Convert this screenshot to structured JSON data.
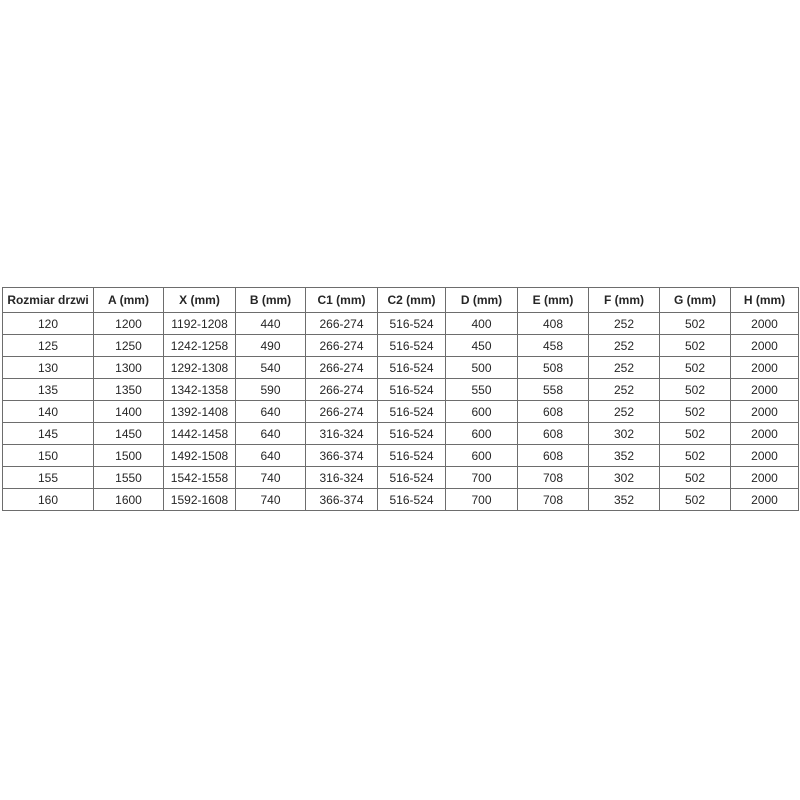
{
  "page": {
    "background_color": "#ffffff",
    "border_color": "#6d6d6d",
    "text_color": "#262626"
  },
  "chart_data": {
    "type": "table",
    "title": "",
    "columns": [
      "Rozmiar drzwi",
      "A (mm)",
      "X (mm)",
      "B (mm)",
      "C1 (mm)",
      "C2 (mm)",
      "D (mm)",
      "E (mm)",
      "F (mm)",
      "G (mm)",
      "H (mm)"
    ],
    "rows": [
      [
        "120",
        "1200",
        "1192-1208",
        "440",
        "266-274",
        "516-524",
        "400",
        "408",
        "252",
        "502",
        "2000"
      ],
      [
        "125",
        "1250",
        "1242-1258",
        "490",
        "266-274",
        "516-524",
        "450",
        "458",
        "252",
        "502",
        "2000"
      ],
      [
        "130",
        "1300",
        "1292-1308",
        "540",
        "266-274",
        "516-524",
        "500",
        "508",
        "252",
        "502",
        "2000"
      ],
      [
        "135",
        "1350",
        "1342-1358",
        "590",
        "266-274",
        "516-524",
        "550",
        "558",
        "252",
        "502",
        "2000"
      ],
      [
        "140",
        "1400",
        "1392-1408",
        "640",
        "266-274",
        "516-524",
        "600",
        "608",
        "252",
        "502",
        "2000"
      ],
      [
        "145",
        "1450",
        "1442-1458",
        "640",
        "316-324",
        "516-524",
        "600",
        "608",
        "302",
        "502",
        "2000"
      ],
      [
        "150",
        "1500",
        "1492-1508",
        "640",
        "366-374",
        "516-524",
        "600",
        "608",
        "352",
        "502",
        "2000"
      ],
      [
        "155",
        "1550",
        "1542-1558",
        "740",
        "316-324",
        "516-524",
        "700",
        "708",
        "302",
        "502",
        "2000"
      ],
      [
        "160",
        "1600",
        "1592-1608",
        "740",
        "366-374",
        "516-524",
        "700",
        "708",
        "352",
        "502",
        "2000"
      ]
    ]
  }
}
